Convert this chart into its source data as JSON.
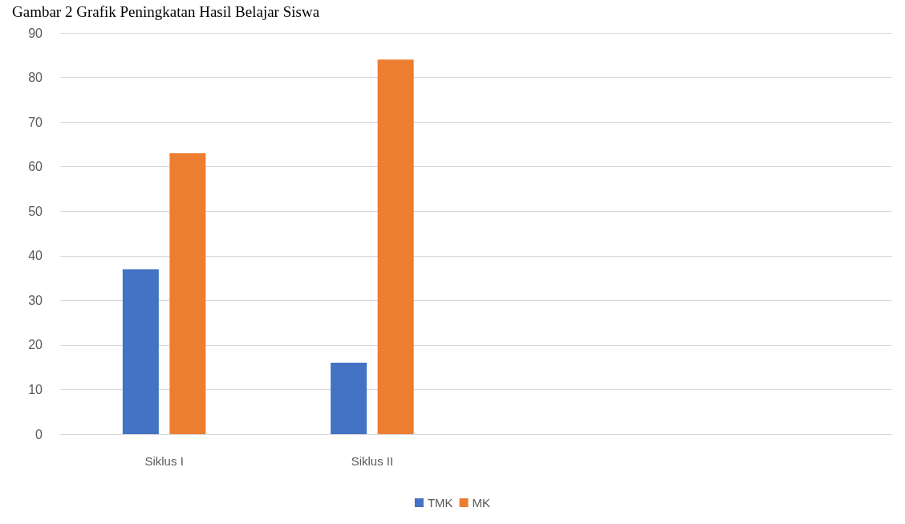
{
  "chart_data": {
    "type": "bar",
    "title": "Gambar 2 Grafik Peningkatan Hasil Belajar Siswa",
    "categories": [
      "Siklus I",
      "Siklus II",
      null,
      null
    ],
    "series": [
      {
        "name": "TMK",
        "color": "#4472c4",
        "values": [
          37,
          16,
          null,
          null
        ]
      },
      {
        "name": "MK",
        "color": "#ed7d31",
        "values": [
          63,
          84,
          null,
          null
        ]
      }
    ],
    "ylim": [
      0,
      90
    ],
    "yticks": [
      0,
      10,
      20,
      30,
      40,
      50,
      60,
      70,
      80,
      90
    ],
    "grid": "y",
    "legend": "bottom"
  }
}
